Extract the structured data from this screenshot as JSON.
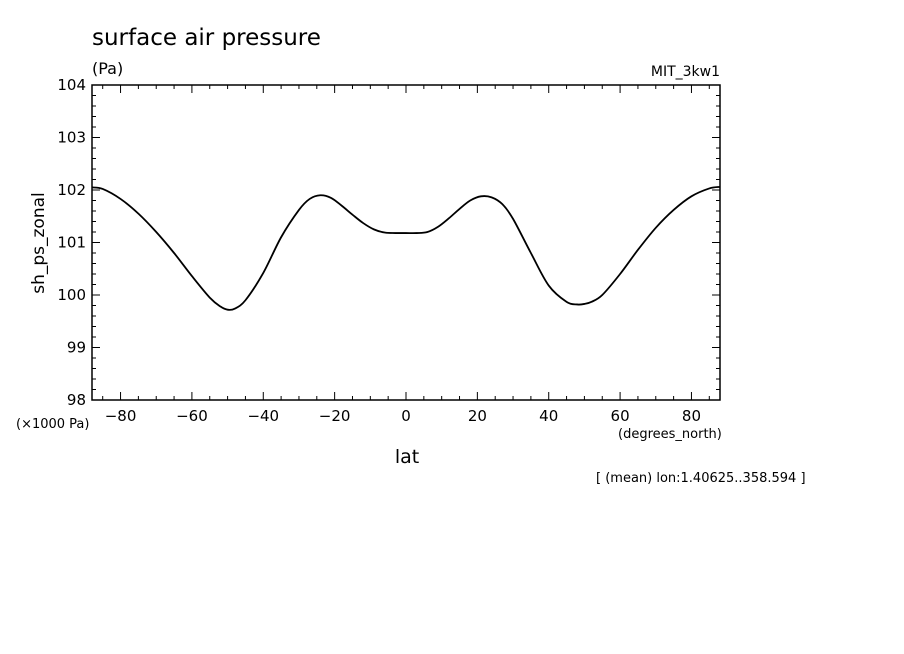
{
  "chart_data": {
    "type": "line",
    "title": "surface air pressure",
    "units": "(Pa)",
    "dataset": "MIT_3kw1",
    "ylabel": "sh_ps_zonal",
    "xlabel": "lat",
    "x_units": "(degrees_north)",
    "y_scale_note": "(×1000 Pa)",
    "footnote": "[ (mean) lon:1.40625..358.594 ]",
    "xlim": [
      -88,
      88
    ],
    "ylim": [
      98,
      104
    ],
    "x_ticks": [
      -80,
      -60,
      -40,
      -20,
      0,
      20,
      40,
      60,
      80
    ],
    "y_ticks": [
      98,
      99,
      100,
      101,
      102,
      103,
      104
    ],
    "grid": false,
    "x": [
      -88,
      -85,
      -80,
      -75,
      -70,
      -65,
      -60,
      -55,
      -52,
      -50,
      -48,
      -45,
      -40,
      -35,
      -30,
      -27,
      -24,
      -21,
      -18,
      -15,
      -12,
      -9,
      -6,
      -3,
      0,
      3,
      6,
      9,
      12,
      15,
      18,
      21,
      24,
      27,
      30,
      35,
      40,
      45,
      48,
      50,
      52,
      55,
      60,
      65,
      70,
      75,
      80,
      85,
      88
    ],
    "series": [
      {
        "values": [
          102.05,
          102.02,
          101.83,
          101.55,
          101.2,
          100.8,
          100.36,
          99.95,
          99.78,
          99.72,
          99.74,
          99.9,
          100.42,
          101.1,
          101.62,
          101.83,
          101.9,
          101.85,
          101.7,
          101.53,
          101.37,
          101.25,
          101.19,
          101.18,
          101.18,
          101.18,
          101.2,
          101.3,
          101.46,
          101.64,
          101.8,
          101.88,
          101.86,
          101.73,
          101.45,
          100.8,
          100.18,
          99.87,
          99.82,
          99.83,
          99.87,
          100.0,
          100.4,
          100.86,
          101.28,
          101.62,
          101.88,
          102.03,
          102.06
        ]
      }
    ]
  }
}
